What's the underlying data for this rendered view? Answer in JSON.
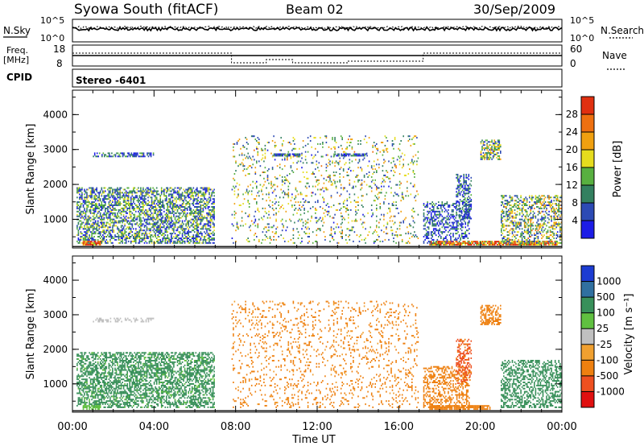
{
  "header": {
    "station": "Syowa South (fitACF)",
    "beam": "Beam 02",
    "date": "30/Sep/2009"
  },
  "nsky_panel": {
    "left_label": "N.Sky",
    "right_label": "N.Search",
    "left_ticks": [
      "10^5",
      "10^0"
    ],
    "right_ticks": [
      "10^5",
      "10^0"
    ]
  },
  "freq_panel": {
    "left_label_line1": "Freq.",
    "left_label_line2": "[MHz]",
    "right_label": "Nave",
    "left_ticks": [
      "18",
      "8"
    ],
    "right_ticks": [
      "60",
      "0"
    ]
  },
  "cpid": {
    "label": "CPID",
    "value": "Stereo -6401"
  },
  "colors": {
    "power_scale": [
      "#1c1ce6",
      "#2c4ab4",
      "#338060",
      "#58b040",
      "#e6dc1e",
      "#f0a010",
      "#ee7010",
      "#e03010"
    ],
    "velocity_scale": [
      "#1c3cd2",
      "#3070a0",
      "#38905a",
      "#60c040",
      "#c0c0c0",
      "#f0a030",
      "#ee8010",
      "#ee5020",
      "#e01010"
    ]
  },
  "chart_data": [
    {
      "type": "heatmap",
      "name": "power",
      "x": "time",
      "xlim": [
        "00:00",
        "24:00"
      ],
      "x_ticks": [
        "00:00",
        "04:00",
        "08:00",
        "12:00",
        "16:00",
        "20:00",
        "00:00"
      ],
      "ylabel": "Slant Range [km]",
      "ylim": [
        180,
        4700
      ],
      "y_ticks": [
        1000,
        2000,
        3000,
        4000
      ],
      "colorbar_label": "Power [dB]",
      "colorbar_ticks": [
        4,
        8,
        12,
        16,
        20,
        24,
        28
      ],
      "colorbar_range": [
        0,
        32
      ],
      "echo_regions": [
        {
          "t0": 0.2,
          "t1": 7.0,
          "r0": 300,
          "r1": 1900,
          "value": 10,
          "density": 0.55
        },
        {
          "t0": 0.5,
          "t1": 1.4,
          "r0": 250,
          "r1": 380,
          "value": 26,
          "density": 0.9
        },
        {
          "t0": 1.0,
          "t1": 4.0,
          "r0": 2780,
          "r1": 2900,
          "value": 8,
          "density": 0.5
        },
        {
          "t0": 9.8,
          "t1": 11.2,
          "r0": 2800,
          "r1": 2900,
          "value": 6,
          "density": 0.85
        },
        {
          "t0": 12.8,
          "t1": 14.5,
          "r0": 2800,
          "r1": 2900,
          "value": 7,
          "density": 0.7
        },
        {
          "t0": 7.8,
          "t1": 17.0,
          "r0": 300,
          "r1": 3400,
          "value": 14,
          "density": 0.12
        },
        {
          "t0": 17.2,
          "t1": 19.5,
          "r0": 300,
          "r1": 1500,
          "value": 6,
          "density": 0.4
        },
        {
          "t0": 18.8,
          "t1": 19.6,
          "r0": 1000,
          "r1": 2300,
          "value": 7,
          "density": 0.45
        },
        {
          "t0": 17.5,
          "t1": 23.8,
          "r0": 250,
          "r1": 380,
          "value": 24,
          "density": 0.85
        },
        {
          "t0": 20.0,
          "t1": 21.0,
          "r0": 2700,
          "r1": 3300,
          "value": 13,
          "density": 0.55
        },
        {
          "t0": 21.0,
          "t1": 24.0,
          "r0": 300,
          "r1": 1700,
          "value": 14,
          "density": 0.45
        }
      ]
    },
    {
      "type": "heatmap",
      "name": "velocity",
      "x": "time",
      "xlabel": "Time UT",
      "xlim": [
        "00:00",
        "24:00"
      ],
      "x_ticks": [
        "00:00",
        "04:00",
        "08:00",
        "12:00",
        "16:00",
        "20:00",
        "00:00"
      ],
      "ylabel": "Slant Range [km]",
      "ylim": [
        180,
        4700
      ],
      "y_ticks": [
        1000,
        2000,
        3000,
        4000
      ],
      "colorbar_label": "Velocity [m s⁻¹]",
      "colorbar_ticks": [
        "1000",
        "500",
        "100",
        "25",
        "-25",
        "-100",
        "-500",
        "-1000"
      ],
      "echo_regions": [
        {
          "t0": 0.2,
          "t1": 7.0,
          "r0": 300,
          "r1": 1900,
          "value": 150,
          "density": 0.55
        },
        {
          "t0": 0.5,
          "t1": 1.4,
          "r0": 250,
          "r1": 380,
          "value": 60,
          "density": 0.85
        },
        {
          "t0": 1.0,
          "t1": 4.0,
          "r0": 2780,
          "r1": 2900,
          "value": 0,
          "density": 0.4
        },
        {
          "t0": 7.8,
          "t1": 17.0,
          "r0": 300,
          "r1": 3400,
          "value": -150,
          "density": 0.12
        },
        {
          "t0": 17.2,
          "t1": 19.5,
          "r0": 300,
          "r1": 1500,
          "value": -300,
          "density": 0.4
        },
        {
          "t0": 18.8,
          "t1": 19.6,
          "r0": 1000,
          "r1": 2300,
          "value": -700,
          "density": 0.45
        },
        {
          "t0": 17.5,
          "t1": 20.5,
          "r0": 250,
          "r1": 380,
          "value": -250,
          "density": 0.85
        },
        {
          "t0": 20.0,
          "t1": 21.0,
          "r0": 2700,
          "r1": 3300,
          "value": -200,
          "density": 0.55
        },
        {
          "t0": 21.0,
          "t1": 24.0,
          "r0": 300,
          "r1": 1700,
          "value": 300,
          "density": 0.45
        }
      ]
    }
  ]
}
